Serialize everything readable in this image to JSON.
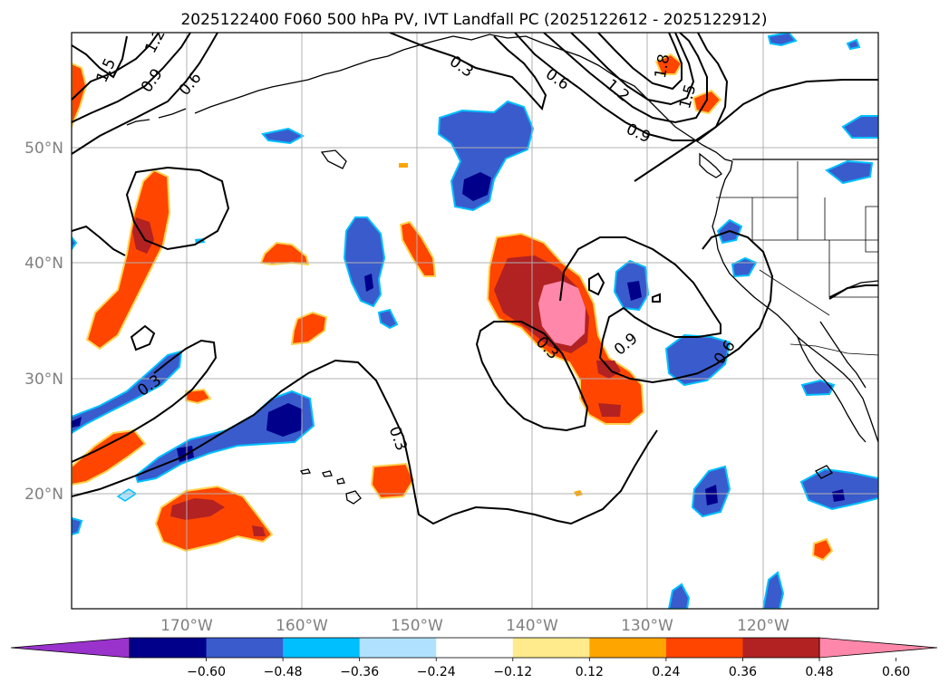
{
  "title": "2025122400 F060 500 hPa PV, IVT Landfall PC (2025122612 - 2025122912)",
  "map": {
    "projection": "PlateCarree",
    "lon_range": [
      -180,
      -110
    ],
    "lat_range": [
      10,
      60
    ],
    "lat_labels": [
      "20°N",
      "30°N",
      "40°N",
      "50°N"
    ],
    "lon_labels": [
      "170°W",
      "160°W",
      "150°W",
      "140°W",
      "130°W",
      "120°W"
    ],
    "gridlines": true,
    "coastline_color": "#000000",
    "grid_color": "#b0b0b0"
  },
  "contours": {
    "color": "#000000",
    "labels": [
      "1.5",
      "1.2",
      "0.9",
      "0.6",
      "0.3",
      "0.6",
      "1.2",
      "0.9",
      "1.5",
      "1.8",
      "0.3",
      "0.3",
      "0.3",
      "0.9",
      "0.6"
    ]
  },
  "colorbar": {
    "extend": "both",
    "ticks": [
      "−0.60",
      "−0.48",
      "−0.36",
      "−0.24",
      "−0.12",
      "0.12",
      "0.24",
      "0.36",
      "0.48",
      "0.60"
    ],
    "colors": [
      "#9933cc",
      "#00008b",
      "#3a5bcc",
      "#00bfff",
      "#b0e2ff",
      "#ffffff",
      "#ffeb8c",
      "#ffa500",
      "#ff4500",
      "#b22222",
      "#ff88aa"
    ]
  }
}
